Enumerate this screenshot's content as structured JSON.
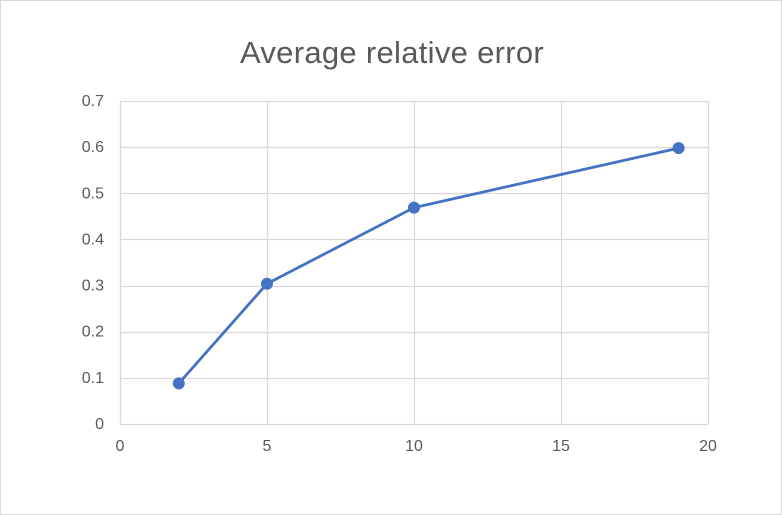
{
  "chart_data": {
    "type": "scatter",
    "title": "Average relative error",
    "xlabel": "",
    "ylabel": "",
    "xlim": [
      0,
      20
    ],
    "ylim": [
      0,
      0.7
    ],
    "x_ticks": [
      0,
      5,
      10,
      15,
      20
    ],
    "y_ticks": [
      0,
      0.1,
      0.2,
      0.3,
      0.4,
      0.5,
      0.6,
      0.7
    ],
    "grid": true,
    "legend": "none",
    "markers": true,
    "connect_points": true,
    "series": [
      {
        "color": "#4472c4",
        "points": [
          {
            "x": 2,
            "y": 0.088
          },
          {
            "x": 5,
            "y": 0.304
          },
          {
            "x": 10,
            "y": 0.469
          },
          {
            "x": 19,
            "y": 0.598
          }
        ]
      }
    ]
  }
}
